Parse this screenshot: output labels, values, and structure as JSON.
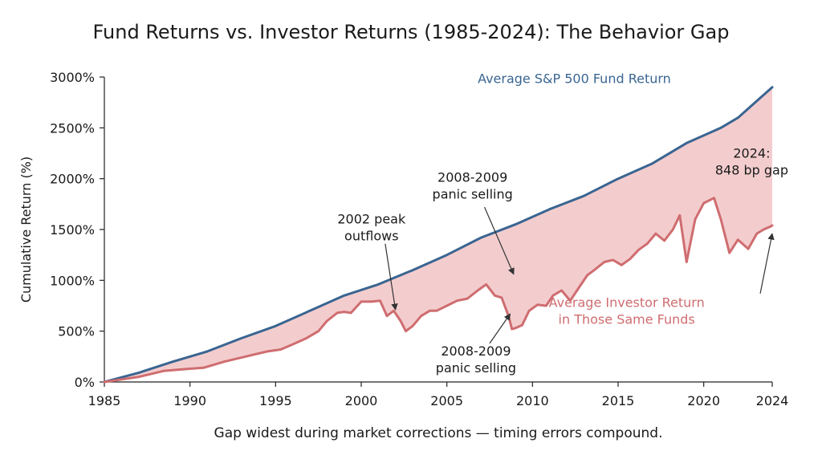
{
  "chart_data": {
    "type": "area",
    "title": "Fund Returns vs. Investor Returns (1985-2024): The Behavior Gap",
    "xlabel": "",
    "ylabel": "Cumulative Return (%)",
    "caption": "Gap widest during market corrections — timing errors compound.",
    "xlim": [
      1985,
      2024
    ],
    "ylim": [
      0,
      3000
    ],
    "x_ticks": [
      1985,
      1990,
      1995,
      2000,
      2005,
      2010,
      2015,
      2020,
      2024
    ],
    "y_ticks": [
      0,
      500,
      1000,
      1500,
      2000,
      2500,
      3000
    ],
    "y_tick_labels": [
      "0%",
      "500%",
      "1000%",
      "1500%",
      "2000%",
      "2500%",
      "3000%"
    ],
    "grid": false,
    "series": [
      {
        "name": "Average S&P 500 Fund Return",
        "color": "#3a6591",
        "x": [
          1985,
          1987,
          1989,
          1991,
          1993,
          1995,
          1997,
          1999,
          2001,
          2003,
          2005,
          2007,
          2009,
          2011,
          2013,
          2015,
          2017,
          2019,
          2021,
          2022,
          2024
        ],
        "y": [
          0,
          90,
          200,
          300,
          430,
          550,
          700,
          850,
          960,
          1100,
          1250,
          1420,
          1550,
          1700,
          1830,
          2000,
          2150,
          2350,
          2500,
          2600,
          2900
        ]
      },
      {
        "name": "Average Investor Return in Those Same Funds",
        "color": "#cf6d70",
        "x": [
          1985,
          1987,
          1988.5,
          1990,
          1990.8,
          1992,
          1993.5,
          1994.5,
          1995.3,
          1996,
          1996.8,
          1997.5,
          1998,
          1998.6,
          1999,
          1999.4,
          2000,
          2000.6,
          2001.1,
          2001.5,
          2001.9,
          2002.3,
          2002.6,
          2003,
          2003.5,
          2004,
          2004.4,
          2005,
          2005.6,
          2006.2,
          2006.8,
          2007.3,
          2007.8,
          2008.2,
          2008.6,
          2008.8,
          2009,
          2009.4,
          2009.8,
          2010.3,
          2010.8,
          2011.2,
          2011.7,
          2012.2,
          2012.6,
          2013.2,
          2013.6,
          2014.2,
          2014.7,
          2015.2,
          2015.7,
          2016.2,
          2016.7,
          2017.2,
          2017.7,
          2018.2,
          2018.6,
          2019,
          2019.5,
          2020,
          2020.6,
          2021,
          2021.5,
          2022,
          2022.6,
          2023.1,
          2023.5,
          2023.9,
          2024
        ],
        "y": [
          0,
          50,
          110,
          130,
          140,
          200,
          260,
          300,
          320,
          370,
          430,
          500,
          600,
          680,
          690,
          680,
          790,
          790,
          800,
          650,
          700,
          600,
          500,
          550,
          650,
          700,
          700,
          750,
          800,
          820,
          900,
          960,
          850,
          830,
          650,
          520,
          530,
          560,
          700,
          760,
          750,
          850,
          900,
          800,
          900,
          1050,
          1100,
          1180,
          1200,
          1150,
          1210,
          1300,
          1360,
          1460,
          1390,
          1500,
          1640,
          1180,
          1600,
          1760,
          1810,
          1600,
          1270,
          1400,
          1310,
          1460,
          1500,
          1530,
          1540
        ]
      }
    ],
    "annotations": [
      {
        "id": "fund-series-label",
        "lines": [
          "Average S&P 500 Fund Return"
        ],
        "color": "#3a6591",
        "x": 2006.8,
        "y": 2942,
        "anchor": "start"
      },
      {
        "id": "investor-series-label",
        "lines": [
          "Average Investor Return",
          "in Those Same Funds"
        ],
        "color": "#cf6d70",
        "x": 2015.5,
        "y": 740,
        "anchor": "middle"
      },
      {
        "id": "gap-2024-label",
        "lines": [
          "2024:",
          "848 bp gap"
        ],
        "color": "#1a1a1a",
        "x": 2022.8,
        "y": 2205,
        "anchor": "middle"
      },
      {
        "id": "outflows-2002-label",
        "lines": [
          "2002 peak",
          "outflows"
        ],
        "color": "#1a1a1a",
        "x": 2000.6,
        "y": 1560,
        "anchor": "middle",
        "arrow_from": [
          2001.4,
          1360
        ],
        "arrow_to": [
          2002.0,
          710
        ]
      },
      {
        "id": "panic-2008-upper-label",
        "lines": [
          "2008-2009",
          "panic selling"
        ],
        "color": "#1a1a1a",
        "x": 2006.5,
        "y": 1970,
        "anchor": "middle",
        "arrow_from": [
          2007.2,
          1720
        ],
        "arrow_to": [
          2008.9,
          1060
        ]
      },
      {
        "id": "panic-2008-lower-label",
        "lines": [
          "2008-2009",
          "panic selling"
        ],
        "color": "#1a1a1a",
        "x": 2006.7,
        "y": 260,
        "anchor": "middle",
        "arrow_from": [
          2007.5,
          380
        ],
        "arrow_to": [
          2008.7,
          670
        ]
      },
      {
        "id": "investor-2024-pointer",
        "lines": [],
        "color": "#1a1a1a",
        "x": 2024,
        "y": 1540,
        "anchor": "middle",
        "arrow_from": [
          2023.3,
          870
        ],
        "arrow_to": [
          2024.0,
          1460
        ]
      }
    ]
  }
}
